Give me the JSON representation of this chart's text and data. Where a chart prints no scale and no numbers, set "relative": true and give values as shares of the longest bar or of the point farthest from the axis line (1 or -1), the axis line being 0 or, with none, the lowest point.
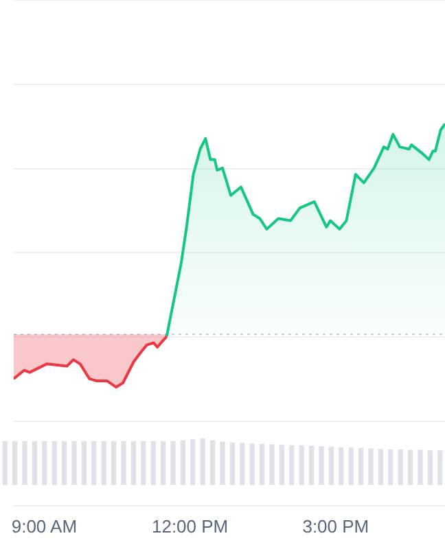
{
  "chart_data": [
    {
      "type": "area",
      "relative": true,
      "grid": "y",
      "legend": false,
      "tick_labels": "x",
      "xlim": [
        8.37,
        17.25
      ],
      "xticks": [
        {
          "value": 9,
          "label": "9:00 AM"
        },
        {
          "value": 12,
          "label": "12:00 PM"
        },
        {
          "value": 15,
          "label": "3:00 PM"
        }
      ],
      "ref_lines": [
        {
          "axis": "y",
          "value": 0,
          "color": "#c8ccd4",
          "line_style": "dotted"
        }
      ],
      "series": [
        {
          "color": "#ea3943",
          "x": [
            8.37,
            8.59,
            8.7,
            9.05,
            9.47,
            9.6,
            9.74,
            9.93,
            10.07,
            10.29,
            10.48,
            10.62,
            10.84,
            10.97,
            11.11,
            11.25,
            11.33,
            11.44,
            11.52
          ],
          "values": [
            -0.21,
            -0.17,
            -0.18,
            -0.14,
            -0.15,
            -0.12,
            -0.14,
            -0.21,
            -0.22,
            -0.22,
            -0.25,
            -0.23,
            -0.13,
            -0.09,
            -0.05,
            -0.04,
            -0.06,
            -0.03,
            -0.01
          ]
        },
        {
          "color": "#16c784",
          "x": [
            11.52,
            11.82,
            11.93,
            12.07,
            12.21,
            12.32,
            12.42,
            12.51,
            12.56,
            12.67,
            12.84,
            13.05,
            13.3,
            13.44,
            13.58,
            13.82,
            14.07,
            14.26,
            14.56,
            14.81,
            14.89,
            15.08,
            15.22,
            15.41,
            15.58,
            15.79,
            15.99,
            16.07,
            16.18,
            16.32,
            16.51,
            16.56,
            16.78,
            16.92,
            17.0,
            17.05,
            17.16,
            17.25
          ],
          "values": [
            -0.01,
            0.34,
            0.51,
            0.76,
            0.88,
            0.93,
            0.83,
            0.83,
            0.78,
            0.79,
            0.66,
            0.7,
            0.57,
            0.55,
            0.5,
            0.55,
            0.54,
            0.6,
            0.63,
            0.51,
            0.54,
            0.5,
            0.54,
            0.76,
            0.72,
            0.79,
            0.89,
            0.88,
            0.95,
            0.89,
            0.88,
            0.9,
            0.86,
            0.83,
            0.87,
            0.87,
            0.97,
            1
          ]
        }
      ]
    },
    {
      "type": "bar",
      "relative": true,
      "legend": false,
      "categories": [
        null,
        null,
        null,
        null,
        null,
        null,
        null,
        null,
        null,
        null,
        null,
        null,
        null,
        null,
        null,
        null,
        null,
        null,
        null,
        null,
        null,
        null,
        null,
        null,
        null,
        null,
        null,
        null,
        null,
        null,
        null,
        null,
        null,
        null,
        null,
        null,
        null,
        null,
        null,
        null,
        null,
        null,
        null,
        null,
        null
      ],
      "series": [
        {
          "color": "#dfe2e8",
          "values": [
            0.94,
            0.94,
            0.94,
            0.94,
            0.94,
            0.94,
            0.94,
            0.94,
            0.94,
            0.94,
            0.94,
            0.94,
            0.94,
            0.94,
            0.94,
            0.94,
            0.94,
            0.94,
            0.96,
            0.98,
            1,
            0.96,
            0.93,
            0.91,
            0.9,
            0.89,
            0.88,
            0.87,
            0.86,
            0.85,
            0.85,
            0.84,
            0.83,
            0.82,
            0.81,
            0.8,
            0.79,
            0.78,
            0.77,
            0.76,
            0.76,
            0.75,
            0.75,
            0.74,
            0.74
          ]
        }
      ]
    }
  ]
}
